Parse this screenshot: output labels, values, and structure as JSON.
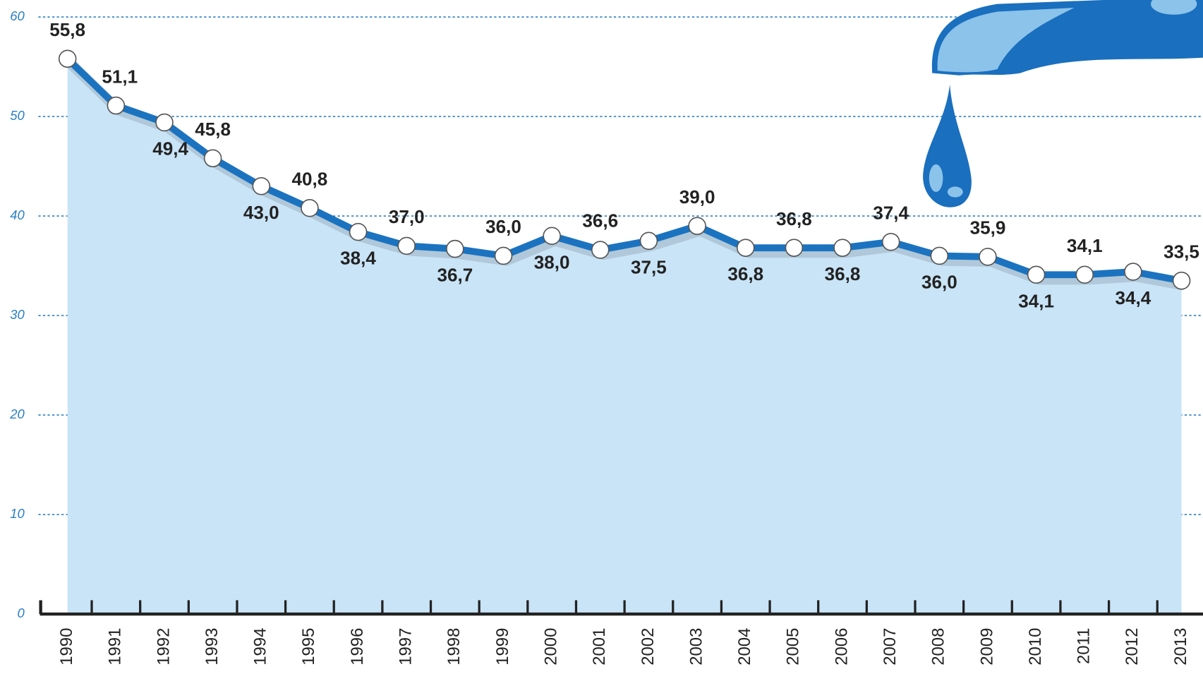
{
  "chart_data": {
    "type": "line",
    "categories": [
      "1990",
      "1991",
      "1992",
      "1993",
      "1994",
      "1995",
      "1996",
      "1997",
      "1998",
      "1999",
      "2000",
      "2001",
      "2002",
      "2003",
      "2004",
      "2005",
      "2006",
      "2007",
      "2008",
      "2009",
      "2010",
      "2011",
      "2012",
      "2013"
    ],
    "series": [
      {
        "name": null,
        "color": "#1b73c0",
        "values": [
          55.8,
          51.1,
          49.4,
          45.8,
          43.0,
          40.8,
          38.4,
          37.0,
          36.7,
          36.0,
          38.0,
          36.6,
          37.5,
          39.0,
          36.8,
          36.8,
          36.8,
          37.4,
          36.0,
          35.9,
          34.1,
          34.1,
          34.4,
          33.5
        ],
        "value_labels": [
          "55,8",
          "51,1",
          "49,4",
          "45,8",
          "43,0",
          "40,8",
          "38,4",
          "37,0",
          "36,7",
          "36,0",
          "38,0",
          "36,6",
          "37,5",
          "39,0",
          "36,8",
          "36,8",
          "36,8",
          "37,4",
          "36,0",
          "35,9",
          "34,1",
          "34,1",
          "34,4",
          "33,5"
        ]
      }
    ],
    "area_color": "#c9e4f7",
    "ylim": [
      0,
      60
    ],
    "yticks": [
      0,
      10,
      20,
      30,
      40,
      50,
      60
    ],
    "grid": true
  }
}
